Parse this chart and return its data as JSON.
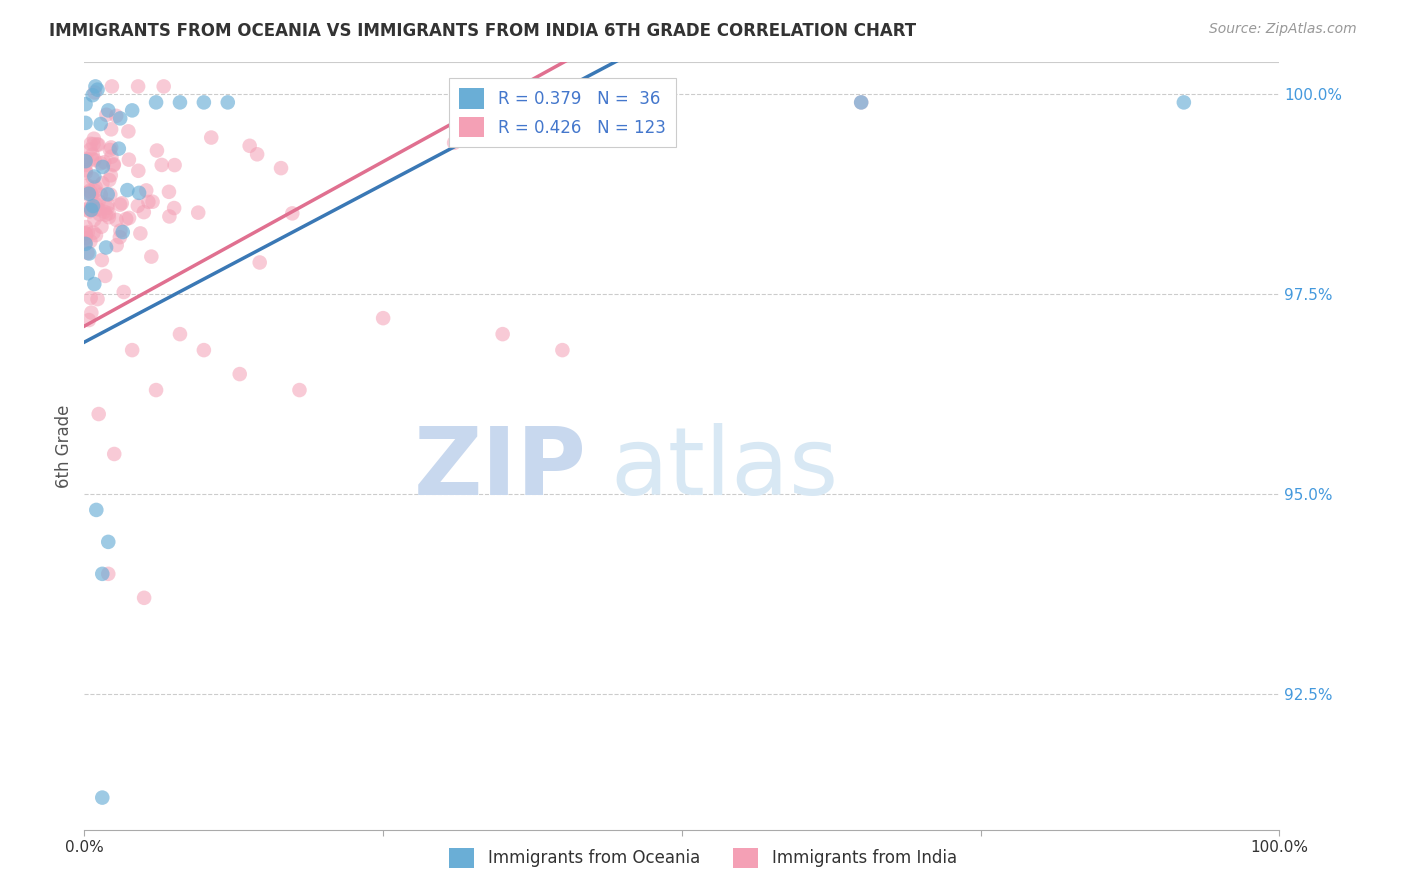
{
  "title": "IMMIGRANTS FROM OCEANIA VS IMMIGRANTS FROM INDIA 6TH GRADE CORRELATION CHART",
  "source": "Source: ZipAtlas.com",
  "ylabel": "6th Grade",
  "yaxis_labels": [
    "100.0%",
    "97.5%",
    "95.0%",
    "92.5%"
  ],
  "yaxis_values": [
    1.0,
    0.975,
    0.95,
    0.925
  ],
  "xmin": 0.0,
  "xmax": 1.0,
  "ymin": 0.908,
  "ymax": 1.004,
  "legend_r_oceania": "R = 0.379",
  "legend_n_oceania": "N =  36",
  "legend_r_india": "R = 0.426",
  "legend_n_india": "N = 123",
  "color_oceania": "#6aaed6",
  "color_india": "#f4a0b5",
  "line_color_oceania": "#3a78b5",
  "line_color_india": "#e07090",
  "watermark_zip": "ZIP",
  "watermark_atlas": "atlas",
  "background_color": "#ffffff"
}
